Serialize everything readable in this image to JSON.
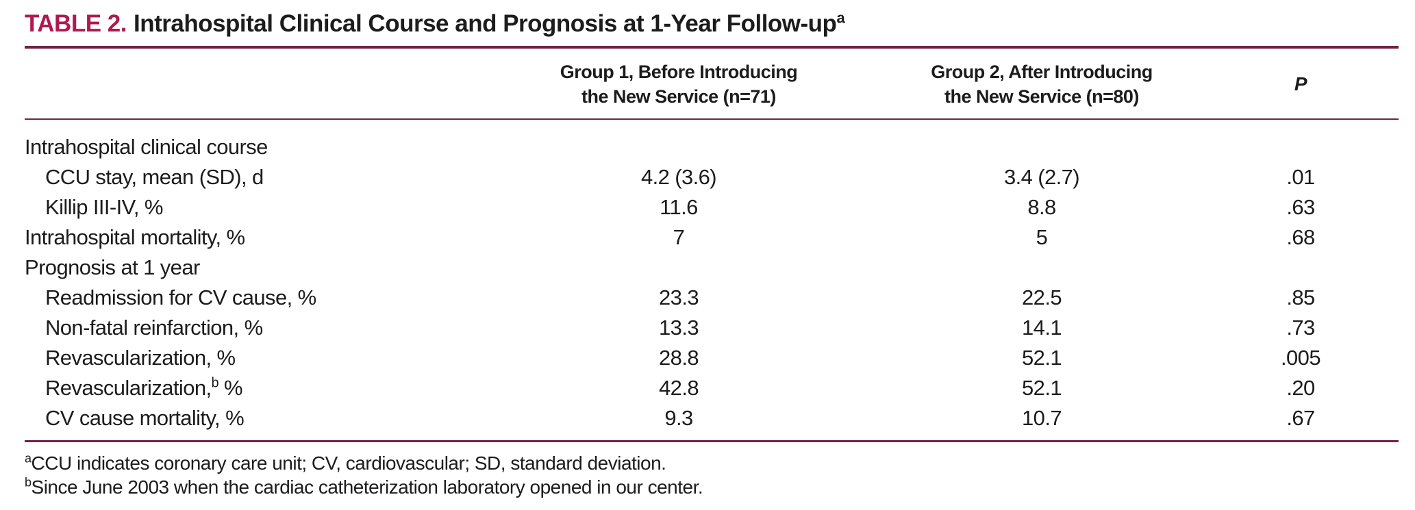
{
  "colors": {
    "accent": "#ae1a4d",
    "rule": "#702345",
    "text": "#1c1c1c"
  },
  "title": {
    "label": "TABLE 2.",
    "text": "Intrahospital Clinical Course and Prognosis at 1-Year Follow-up",
    "superscript": "a"
  },
  "table": {
    "header": {
      "group1": {
        "line1": "Group 1, Before Introducing",
        "line2": "the New Service (n=71)"
      },
      "group2": {
        "line1": "Group 2, After Introducing",
        "line2": "the New Service (n=80)"
      },
      "p": "P"
    },
    "rows": [
      {
        "label": "Intrahospital clinical course",
        "g1": "",
        "g2": "",
        "p": ""
      },
      {
        "label": "CCU stay, mean (SD), d",
        "g1": "4.2 (3.6)",
        "g2": "3.4 (2.7)",
        "p": ".01"
      },
      {
        "label": "Killip III-IV, %",
        "g1": "11.6",
        "g2": "8.8",
        "p": ".63"
      },
      {
        "label": "Intrahospital mortality, %",
        "g1": "7",
        "g2": "5",
        "p": ".68"
      },
      {
        "label": "Prognosis at 1 year",
        "g1": "",
        "g2": "",
        "p": ""
      },
      {
        "label": "Readmission for CV cause, %",
        "g1": "23.3",
        "g2": "22.5",
        "p": ".85"
      },
      {
        "label": "Non-fatal reinfarction, %",
        "g1": "13.3",
        "g2": "14.1",
        "p": ".73"
      },
      {
        "label": "Revascularization, %",
        "g1": "28.8",
        "g2": "52.1",
        "p": ".005"
      },
      {
        "label": "Revascularization,",
        "label_sup": "b",
        "label_after": " %",
        "g1": "42.8",
        "g2": "52.1",
        "p": ".20"
      },
      {
        "label": "CV cause mortality, %",
        "g1": "9.3",
        "g2": "10.7",
        "p": ".67"
      }
    ]
  },
  "footnotes": [
    {
      "sup": "a",
      "text": "CCU indicates coronary care unit; CV, cardiovascular; SD, standard deviation."
    },
    {
      "sup": "b",
      "text": "Since June 2003 when the cardiac catheterization laboratory opened in our center."
    }
  ]
}
